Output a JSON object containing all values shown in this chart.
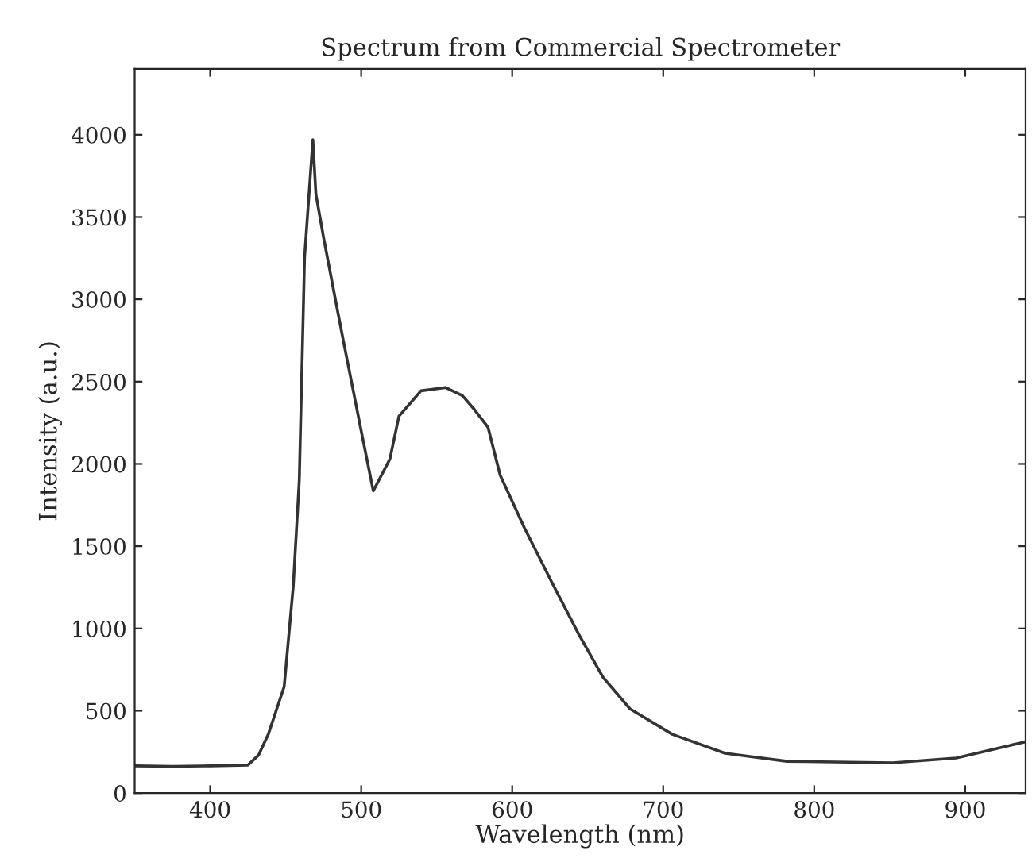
{
  "chart_data": {
    "type": "line",
    "title": "Spectrum from Commercial Spectrometer",
    "xlabel": "Wavelength (nm)",
    "ylabel": "Intensity (a.u.)",
    "xlim": [
      350,
      940
    ],
    "ylim": [
      0,
      4400
    ],
    "xticks": [
      400,
      500,
      600,
      700,
      800,
      900
    ],
    "yticks": [
      0,
      500,
      1000,
      1500,
      2000,
      2500,
      3000,
      3500,
      4000
    ],
    "grid": false,
    "legend": false,
    "marker": "none",
    "line_style": "solid",
    "series": [
      {
        "color": "#333333",
        "x": [
          350,
          375,
          400,
          425,
          432,
          438.5,
          449,
          455,
          459,
          462.5,
          468,
          470,
          475,
          483,
          488.5,
          501,
          508,
          519,
          525,
          539.6,
          556,
          567,
          575,
          584,
          592,
          608,
          626,
          644,
          660,
          678,
          706,
          741,
          782,
          852,
          894,
          921,
          939
        ],
        "values": [
          165,
          162,
          165,
          170,
          230,
          357,
          647,
          1256,
          1900,
          3256,
          3970,
          3640,
          3380,
          2995,
          2734,
          2155,
          1836,
          2029,
          2290,
          2444,
          2464,
          2415,
          2330,
          2222,
          1932,
          1613,
          1285,
          966,
          705,
          512,
          357,
          242,
          193,
          184,
          213,
          271,
          309
        ]
      }
    ]
  }
}
